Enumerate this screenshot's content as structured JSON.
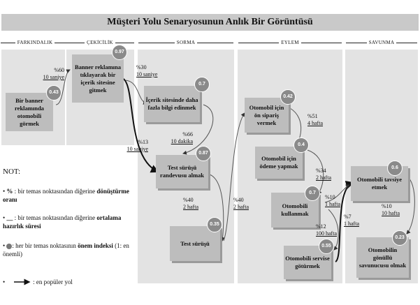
{
  "title": "Müşteri Yolu Senaryosunun Anlık Bir Görüntüsü",
  "stages": [
    "FARKINDALIK",
    "ÇEKİCİLİK",
    "SORMA",
    "EYLEM",
    "SAVUNMA"
  ],
  "nodes": [
    {
      "label": "Bir banner reklamında otomobili görmek",
      "index": "0.43"
    },
    {
      "label": "Banner reklamına tıklayarak bir içerik sitesine gitmek",
      "index": "0.97"
    },
    {
      "label": "İçerik sitesinde daha fazla bilgi edinmek",
      "index": "0.7"
    },
    {
      "label": "Test sürüşü randevusu almak",
      "index": "0.87"
    },
    {
      "label": "Test sürüşü",
      "index": "0.35"
    },
    {
      "label": "Otomobil için ön sipariş vermek",
      "index": "0.42"
    },
    {
      "label": "Otomobil için ödeme yapmak",
      "index": "0.4"
    },
    {
      "label": "Otomobili kullanmak",
      "index": "0.7"
    },
    {
      "label": "Otomobili servise götürmek",
      "index": "0.55"
    },
    {
      "label": "Otomobili tavsiye etmek",
      "index": "0.6"
    },
    {
      "label": "Otomobilin gönüllü savunucusu olmak",
      "index": "0.23"
    }
  ],
  "metrics": [
    {
      "pct": "%60",
      "time": "10 saniye"
    },
    {
      "pct": "%30",
      "time": "10 saniye"
    },
    {
      "pct": "%13",
      "time": "10 saniye"
    },
    {
      "pct": "%66",
      "time": "10 dakika"
    },
    {
      "pct": "%40",
      "time": "2 hafta"
    },
    {
      "pct": "%40",
      "time": "2 hafta"
    },
    {
      "pct": "%51",
      "time": "4 hafta"
    },
    {
      "pct": "%34",
      "time": "2 hafta"
    },
    {
      "pct": "%10",
      "time": "1 hafta"
    },
    {
      "pct": "%12",
      "time": "100 hafta"
    },
    {
      "pct": "%7",
      "time": "1 hafta"
    },
    {
      "pct": "%10",
      "time": "10 hafta"
    }
  ],
  "legend": {
    "heading": "NOT:",
    "item1_symbol": "%",
    "item1_a": " : bir temas noktasından diğerine ",
    "item1_b": "dönüştürme oranı",
    "item2_symbol": "__",
    "item2_a": " : bir temas noktasından diğerine ",
    "item2_b": "ortalama hazırlık süresi",
    "item3_a": ": her bir temas noktasının ",
    "item3_b": "önem indeksi",
    "item3_c": " (1: en önemli)",
    "item4": ": en popüler yol"
  }
}
